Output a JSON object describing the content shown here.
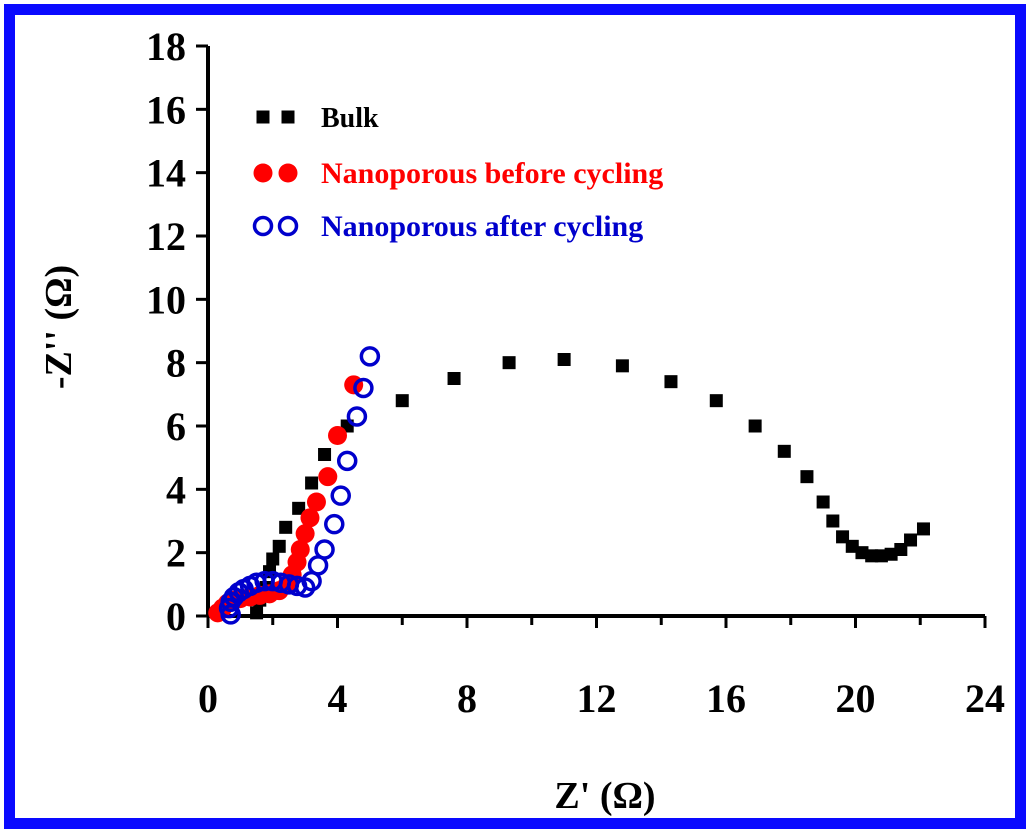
{
  "colors": {
    "frame": "#0a0aff",
    "bulk": "#000000",
    "before": "#ff0000",
    "after": "#0000cc"
  },
  "chart_data": {
    "type": "scatter",
    "xlabel": "Z' (Ω)",
    "ylabel": "-Z'' (Ω)",
    "xlim": [
      0,
      24
    ],
    "ylim": [
      0,
      18
    ],
    "xticks": [
      0,
      4,
      8,
      12,
      16,
      20,
      24
    ],
    "yticks": [
      0,
      2,
      4,
      6,
      8,
      10,
      12,
      14,
      16,
      18
    ],
    "grid": false,
    "legend_placement": "top-left",
    "series": [
      {
        "name": "Bulk",
        "marker": "square",
        "color": "#000000",
        "x": [
          1.5,
          1.6,
          1.8,
          1.9,
          2.0,
          2.2,
          2.4,
          2.8,
          3.2,
          3.6,
          4.3,
          6.0,
          7.6,
          9.3,
          11.0,
          12.8,
          14.3,
          15.7,
          16.9,
          17.8,
          18.5,
          19.0,
          19.3,
          19.6,
          19.9,
          20.2,
          20.5,
          20.8,
          21.1,
          21.4,
          21.7,
          22.1
        ],
        "y": [
          0.1,
          0.5,
          0.9,
          1.4,
          1.8,
          2.2,
          2.8,
          3.4,
          4.2,
          5.1,
          6.0,
          6.8,
          7.5,
          8.0,
          8.1,
          7.9,
          7.4,
          6.8,
          6.0,
          5.2,
          4.4,
          3.6,
          3.0,
          2.5,
          2.2,
          2.0,
          1.9,
          1.9,
          1.95,
          2.1,
          2.4,
          2.75
        ]
      },
      {
        "name": "Nanoporous before cycling",
        "marker": "filled-circle",
        "color": "#ff0000",
        "x": [
          0.3,
          0.45,
          0.6,
          0.8,
          1.0,
          1.3,
          1.6,
          1.9,
          2.2,
          2.45,
          2.6,
          2.75,
          2.85,
          3.0,
          3.15,
          3.35,
          3.7,
          4.0,
          4.5
        ],
        "y": [
          0.1,
          0.25,
          0.4,
          0.5,
          0.55,
          0.6,
          0.65,
          0.7,
          0.8,
          1.0,
          1.3,
          1.7,
          2.1,
          2.6,
          3.1,
          3.6,
          4.4,
          5.7,
          7.3
        ]
      },
      {
        "name": "Nanoporous after cycling",
        "marker": "open-circle",
        "color": "#0000cc",
        "x": [
          0.7,
          0.65,
          0.7,
          0.8,
          0.95,
          1.1,
          1.3,
          1.5,
          1.75,
          2.0,
          2.25,
          2.5,
          2.75,
          3.0,
          3.2,
          3.4,
          3.6,
          3.9,
          4.1,
          4.3,
          4.6,
          4.8,
          5.0
        ],
        "y": [
          0.05,
          0.25,
          0.45,
          0.6,
          0.75,
          0.85,
          0.95,
          1.05,
          1.1,
          1.1,
          1.05,
          1.0,
          0.95,
          0.9,
          1.1,
          1.6,
          2.1,
          2.9,
          3.8,
          4.9,
          6.3,
          7.2,
          8.2
        ]
      }
    ]
  }
}
